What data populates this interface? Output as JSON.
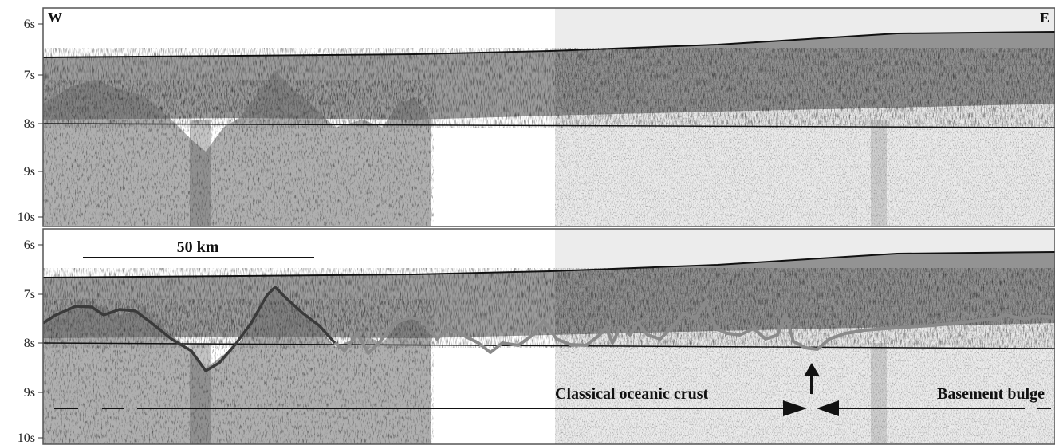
{
  "top_panel": {
    "time_ticks": [
      "6s",
      "7s",
      "8s",
      "9s",
      "10s"
    ],
    "west_label": "W",
    "east_label": "E"
  },
  "bottom_panel": {
    "time_ticks": [
      "6s",
      "7s",
      "8s",
      "9s",
      "10s"
    ],
    "scale_bar_label": "50 km",
    "crust_label": "Classical oceanic crust",
    "bulge_label": "Basement bulge"
  },
  "colors": {
    "frame": "#555555",
    "shaded_region": "#ececec",
    "basement_trace": "#8a8a8a",
    "reflector_line": "#111111"
  }
}
